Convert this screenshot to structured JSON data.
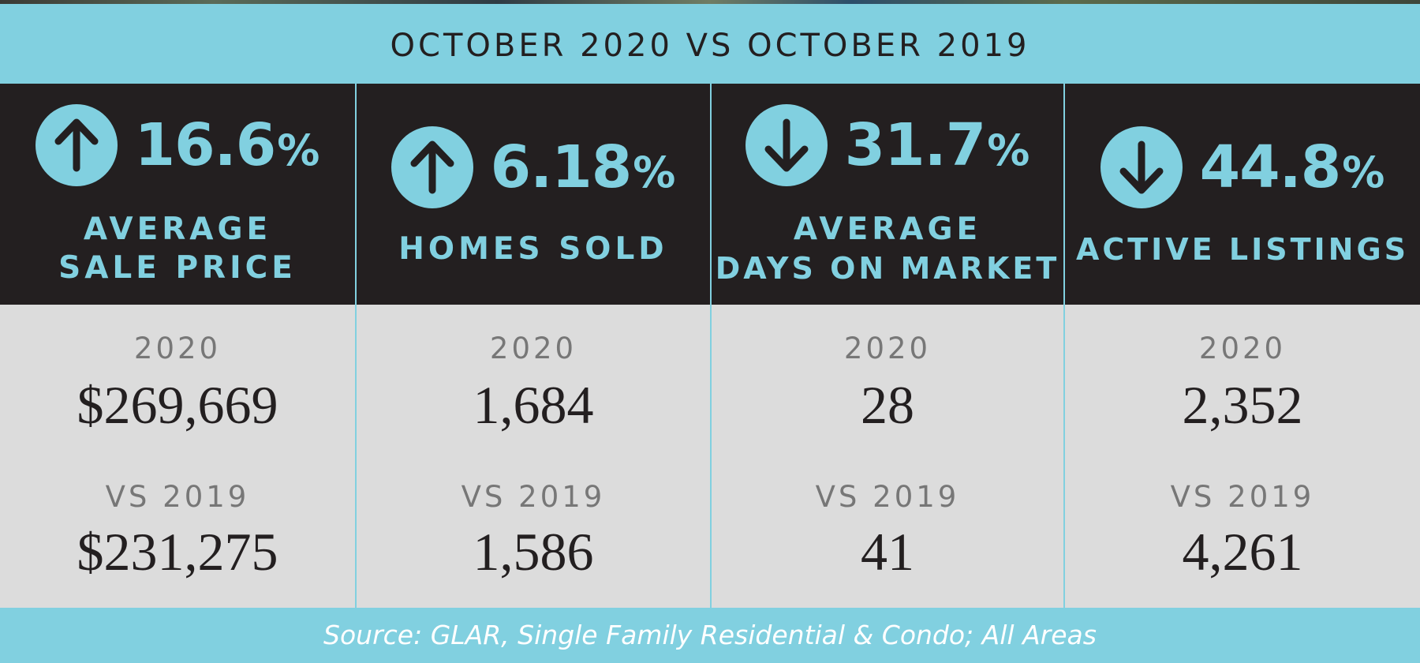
{
  "header": {
    "title": "OCTOBER 2020 VS OCTOBER 2019"
  },
  "colors": {
    "accent": "#81d0e0",
    "dark": "#231f20",
    "panel": "#dcdcdc",
    "muted": "#777777"
  },
  "stats": [
    {
      "direction": "up",
      "icon": "arrow-up-icon",
      "percent": "16.6",
      "percent_symbol": "%",
      "label_line1": "AVERAGE",
      "label_line2": "SALE PRICE",
      "year_2020_label": "2020",
      "value_2020": "$269,669",
      "year_2019_label": "VS 2019",
      "value_2019": "$231,275"
    },
    {
      "direction": "up",
      "icon": "arrow-up-icon",
      "percent": "6.18",
      "percent_symbol": "%",
      "label_line1": "HOMES SOLD",
      "year_2020_label": "2020",
      "value_2020": "1,684",
      "year_2019_label": "VS 2019",
      "value_2019": "1,586"
    },
    {
      "direction": "down",
      "icon": "arrow-down-icon",
      "percent": "31.7",
      "percent_symbol": "%",
      "label_line1": "AVERAGE",
      "label_line2": "DAYS ON MARKET",
      "year_2020_label": "2020",
      "value_2020": "28",
      "year_2019_label": "VS 2019",
      "value_2019": "41"
    },
    {
      "direction": "down",
      "icon": "arrow-down-icon",
      "percent": "44.8",
      "percent_symbol": "%",
      "label_line1": "ACTIVE LISTINGS",
      "year_2020_label": "2020",
      "value_2020": "2,352",
      "year_2019_label": "VS 2019",
      "value_2019": "4,261"
    }
  ],
  "footer": {
    "source": "Source: GLAR, Single Family Residential & Condo; All Areas"
  }
}
